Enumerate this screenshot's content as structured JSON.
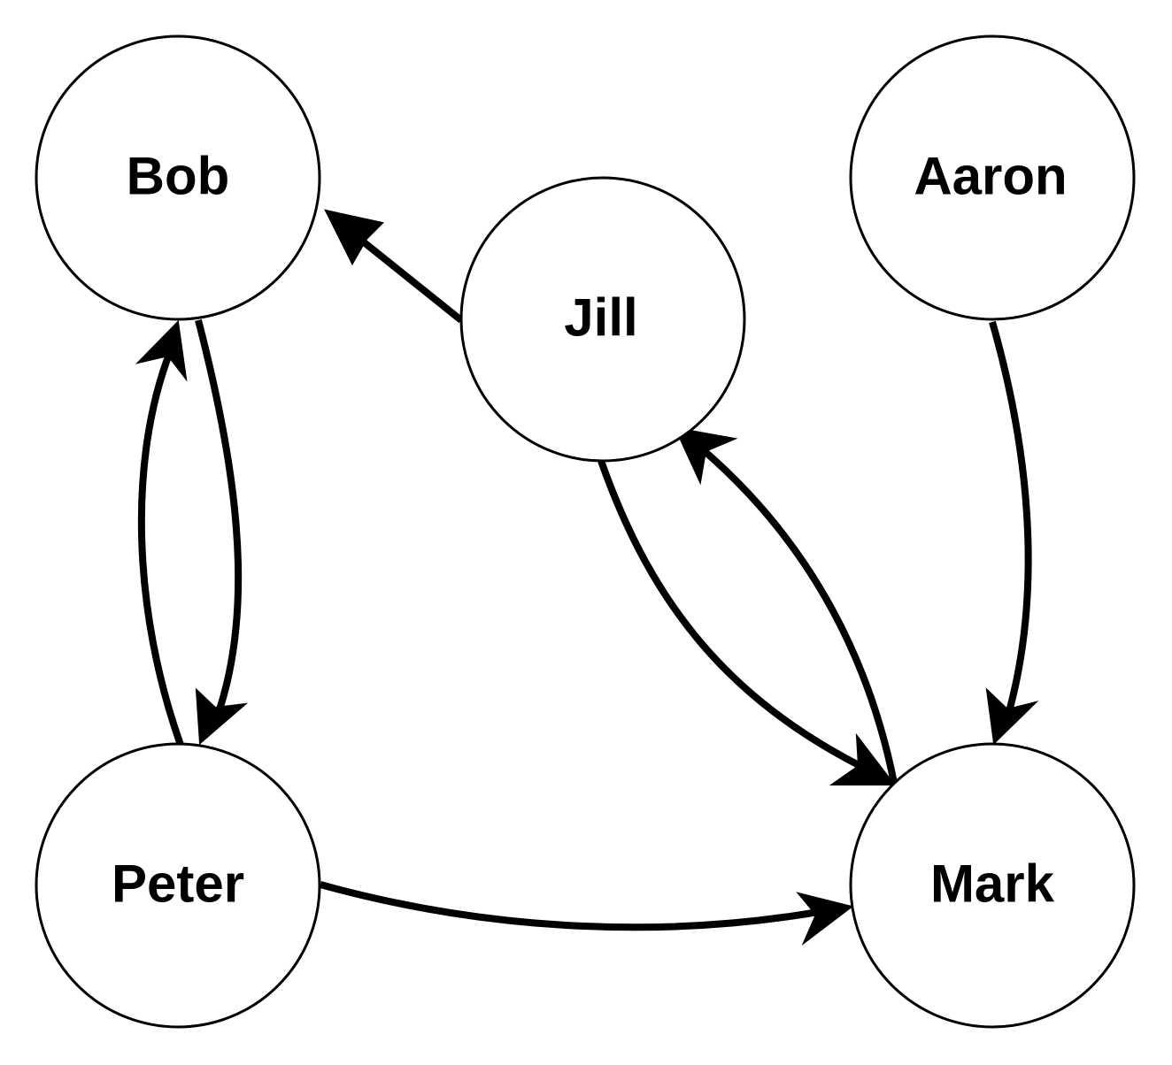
{
  "nodes": {
    "bob": {
      "label": "Bob"
    },
    "jill": {
      "label": "Jill"
    },
    "aaron": {
      "label": "Aaron"
    },
    "peter": {
      "label": "Peter"
    },
    "mark": {
      "label": "Mark"
    }
  },
  "edges": [
    {
      "from": "Jill",
      "to": "Bob"
    },
    {
      "from": "Bob",
      "to": "Peter"
    },
    {
      "from": "Peter",
      "to": "Bob"
    },
    {
      "from": "Jill",
      "to": "Mark"
    },
    {
      "from": "Mark",
      "to": "Jill"
    },
    {
      "from": "Aaron",
      "to": "Mark"
    },
    {
      "from": "Peter",
      "to": "Mark"
    }
  ],
  "colors": {
    "stroke": "#000000",
    "background": "#ffffff"
  }
}
